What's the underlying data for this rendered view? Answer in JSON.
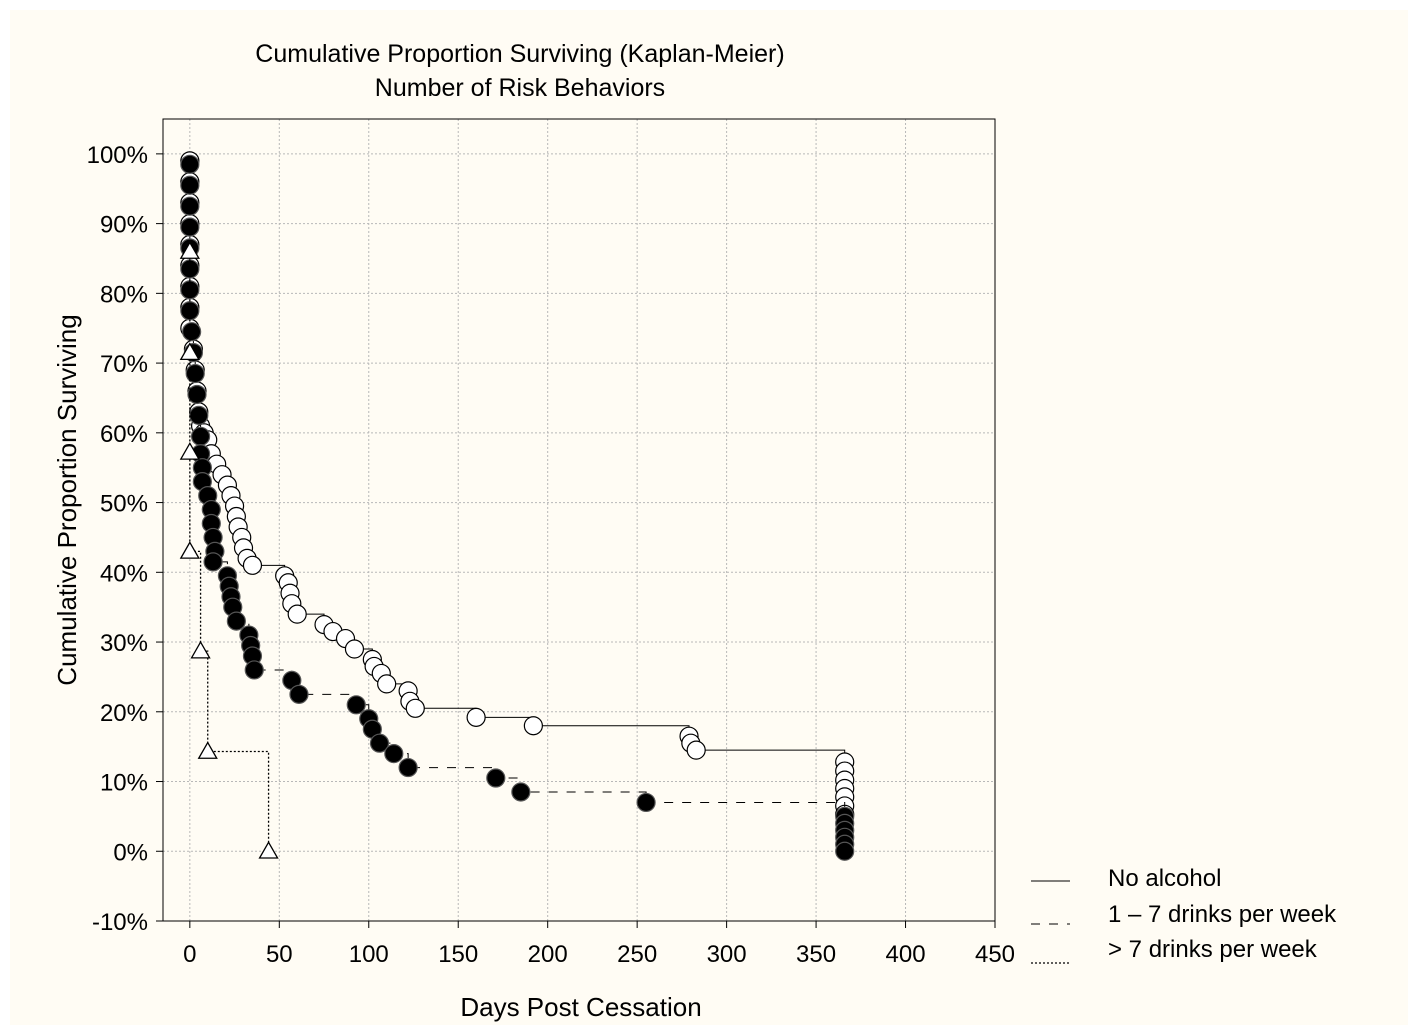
{
  "chart_data": {
    "type": "line",
    "title": "Cumulative Proportion Surviving (Kaplan-Meier)",
    "subtitle": "Number of Risk Behaviors",
    "xlabel": "Days Post Cessation",
    "ylabel": "Cumulative Proportion Surviving",
    "xlim": [
      -15,
      450
    ],
    "ylim": [
      -10,
      105
    ],
    "x_ticks": [
      0,
      50,
      100,
      150,
      200,
      250,
      300,
      350,
      400,
      450
    ],
    "y_ticks": [
      -10,
      0,
      10,
      20,
      30,
      40,
      50,
      60,
      70,
      80,
      90,
      100
    ],
    "y_tick_labels": [
      "-10%",
      "0%",
      "10%",
      "20%",
      "30%",
      "40%",
      "50%",
      "60%",
      "70%",
      "80%",
      "90%",
      "100%"
    ],
    "grid": true,
    "legend_position": "bottom-right",
    "series": [
      {
        "name": "No alcohol",
        "line_style": "solid",
        "marker": "open-circle",
        "points": [
          [
            0,
            99
          ],
          [
            0,
            96
          ],
          [
            0,
            93
          ],
          [
            0,
            90
          ],
          [
            0,
            87
          ],
          [
            0,
            84
          ],
          [
            0,
            81
          ],
          [
            0,
            78
          ],
          [
            0,
            75
          ],
          [
            2,
            72
          ],
          [
            3,
            69
          ],
          [
            4,
            66
          ],
          [
            5,
            63
          ],
          [
            6,
            61
          ],
          [
            8,
            60
          ],
          [
            10,
            59
          ],
          [
            12,
            57
          ],
          [
            15,
            55.5
          ],
          [
            18,
            54
          ],
          [
            21,
            52.5
          ],
          [
            23,
            51
          ],
          [
            25,
            49.5
          ],
          [
            26,
            48
          ],
          [
            27,
            46.5
          ],
          [
            29,
            45
          ],
          [
            30,
            43.5
          ],
          [
            32,
            42
          ],
          [
            35,
            41
          ],
          [
            53,
            39.5
          ],
          [
            55,
            38.5
          ],
          [
            56,
            37
          ],
          [
            57,
            35.5
          ],
          [
            60,
            34
          ],
          [
            75,
            32.5
          ],
          [
            80,
            31.5
          ],
          [
            87,
            30.5
          ],
          [
            92,
            29
          ],
          [
            102,
            27.5
          ],
          [
            103,
            26.5
          ],
          [
            107,
            25.5
          ],
          [
            110,
            24
          ],
          [
            122,
            23
          ],
          [
            123,
            21.5
          ],
          [
            126,
            20.5
          ],
          [
            160,
            19.2
          ],
          [
            192,
            18
          ],
          [
            279,
            16.5
          ],
          [
            280,
            15.5
          ],
          [
            283,
            14.5
          ],
          [
            366,
            12.8
          ],
          [
            366,
            11.5
          ],
          [
            366,
            10.2
          ],
          [
            366,
            9
          ],
          [
            366,
            7.8
          ],
          [
            366,
            6.5
          ],
          [
            366,
            5.3
          ]
        ]
      },
      {
        "name": "1 – 7 drinks per week",
        "line_style": "dashed",
        "marker": "filled-circle",
        "points": [
          [
            0,
            98.5
          ],
          [
            0,
            95.5
          ],
          [
            0,
            92.5
          ],
          [
            0,
            89.5
          ],
          [
            0,
            86.5
          ],
          [
            0,
            83.5
          ],
          [
            0,
            80.5
          ],
          [
            0,
            77.5
          ],
          [
            1,
            74.5
          ],
          [
            2,
            71.5
          ],
          [
            3,
            68.5
          ],
          [
            4,
            65.5
          ],
          [
            5,
            62.5
          ],
          [
            6,
            59.5
          ],
          [
            6,
            57
          ],
          [
            7,
            55
          ],
          [
            7,
            53
          ],
          [
            10,
            51
          ],
          [
            12,
            49
          ],
          [
            12,
            47
          ],
          [
            13,
            45
          ],
          [
            14,
            43
          ],
          [
            13,
            41.5
          ],
          [
            21,
            39.5
          ],
          [
            22,
            38
          ],
          [
            23,
            36.5
          ],
          [
            24,
            35
          ],
          [
            26,
            33
          ],
          [
            33,
            31
          ],
          [
            34,
            29.5
          ],
          [
            35,
            28
          ],
          [
            36,
            26
          ],
          [
            57,
            24.5
          ],
          [
            61,
            22.5
          ],
          [
            93,
            21
          ],
          [
            100,
            19
          ],
          [
            102,
            17.5
          ],
          [
            106,
            15.5
          ],
          [
            114,
            14
          ],
          [
            122,
            12
          ],
          [
            171,
            10.5
          ],
          [
            185,
            8.5
          ],
          [
            255,
            7
          ],
          [
            366,
            5
          ],
          [
            366,
            4
          ],
          [
            366,
            3
          ],
          [
            366,
            2
          ],
          [
            366,
            1
          ],
          [
            366,
            0
          ]
        ]
      },
      {
        "name": "> 7 drinks per week",
        "line_style": "dotted",
        "marker": "open-triangle",
        "points": [
          [
            0,
            86
          ],
          [
            0,
            71.5
          ],
          [
            0,
            57.2
          ],
          [
            0,
            43
          ],
          [
            6,
            28.7
          ],
          [
            10,
            14.3
          ],
          [
            44,
            0
          ]
        ]
      }
    ]
  }
}
